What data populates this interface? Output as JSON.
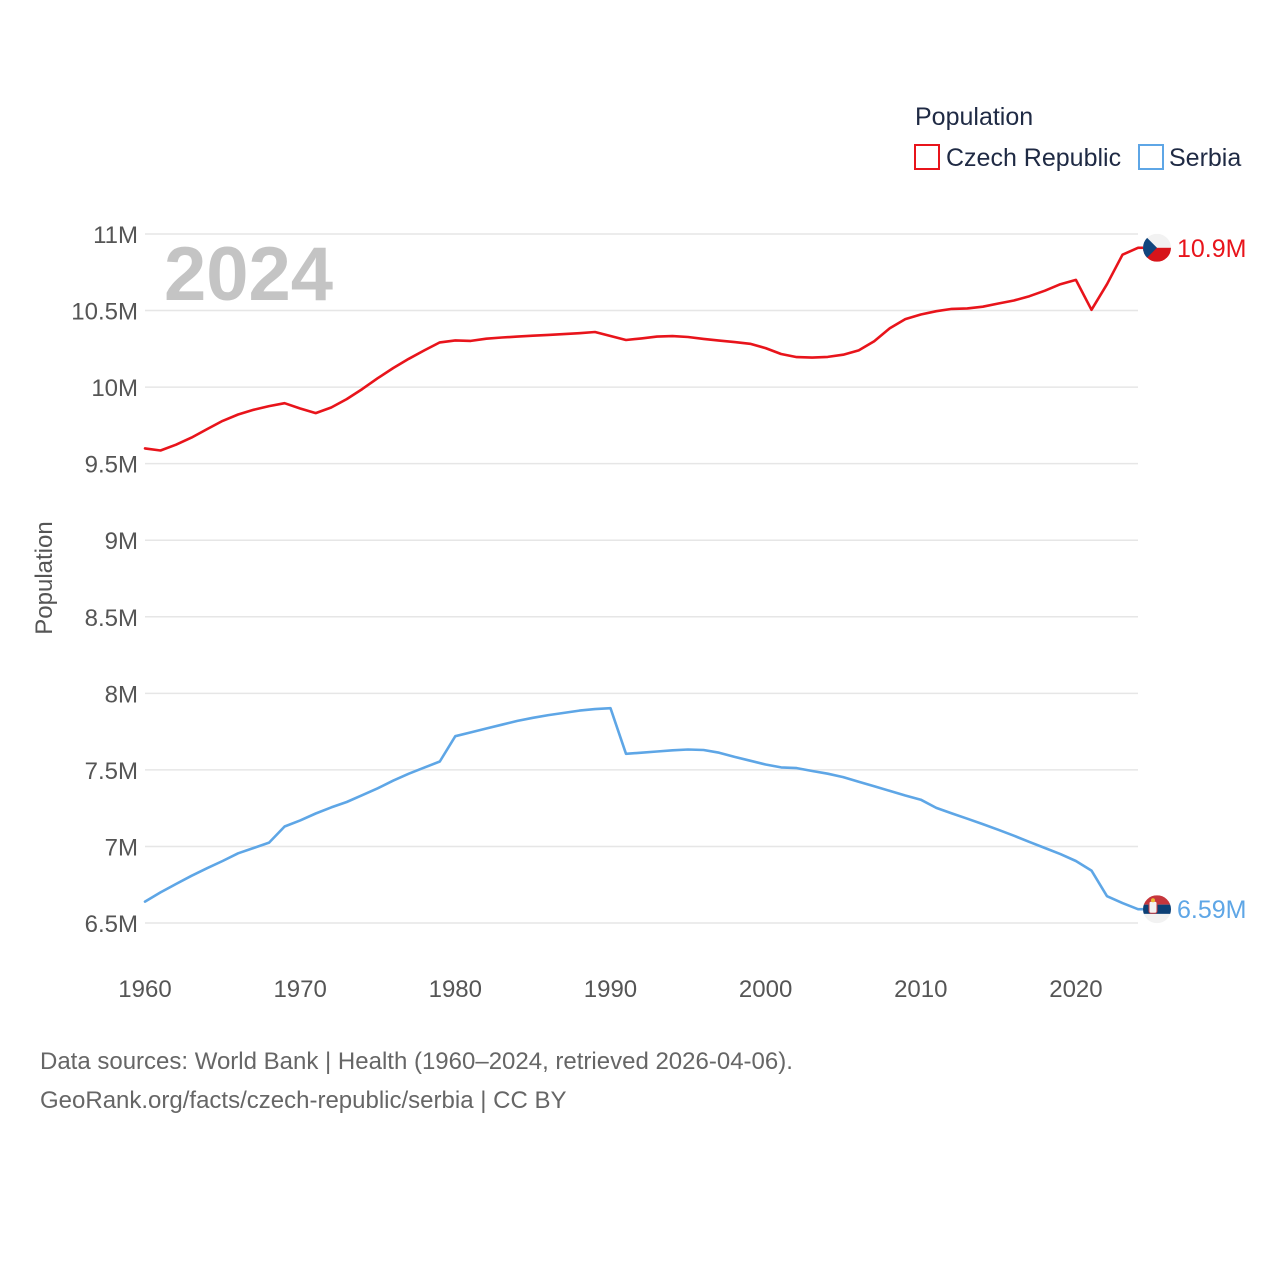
{
  "chart_data": {
    "type": "line",
    "title": "Population",
    "ylabel": "Population",
    "xlabel": "",
    "year_label": "2024",
    "xlim": [
      1960,
      2024
    ],
    "ylim": [
      6250000,
      11050000
    ],
    "x_ticks": [
      1960,
      1970,
      1980,
      1990,
      2000,
      2010,
      2020
    ],
    "y_ticks": [
      {
        "value": 6500000,
        "label": "6.5M"
      },
      {
        "value": 7000000,
        "label": "7M"
      },
      {
        "value": 7500000,
        "label": "7.5M"
      },
      {
        "value": 8000000,
        "label": "8M"
      },
      {
        "value": 8500000,
        "label": "8.5M"
      },
      {
        "value": 9000000,
        "label": "9M"
      },
      {
        "value": 9500000,
        "label": "9.5M"
      },
      {
        "value": 10000000,
        "label": "10M"
      },
      {
        "value": 10500000,
        "label": "10.5M"
      },
      {
        "value": 11000000,
        "label": "11M"
      }
    ],
    "grid": true,
    "legend_position": "top-right",
    "x": [
      1960,
      1961,
      1962,
      1963,
      1964,
      1965,
      1966,
      1967,
      1968,
      1969,
      1970,
      1971,
      1972,
      1973,
      1974,
      1975,
      1976,
      1977,
      1978,
      1979,
      1980,
      1981,
      1982,
      1983,
      1984,
      1985,
      1986,
      1987,
      1988,
      1989,
      1990,
      1991,
      1992,
      1993,
      1994,
      1995,
      1996,
      1997,
      1998,
      1999,
      2000,
      2001,
      2002,
      2003,
      2004,
      2005,
      2006,
      2007,
      2008,
      2009,
      2010,
      2011,
      2012,
      2013,
      2014,
      2015,
      2016,
      2017,
      2018,
      2019,
      2020,
      2021,
      2022,
      2023,
      2024
    ],
    "series": [
      {
        "name": "Czech Republic",
        "color": "#e8141b",
        "end_label": "10.9M",
        "flag": "czech-flag",
        "values": [
          9600000,
          9586000,
          9624000,
          9670000,
          9726000,
          9779000,
          9821000,
          9852000,
          9876000,
          9895000,
          9860000,
          9830000,
          9867000,
          9922000,
          9987000,
          10058000,
          10125000,
          10185000,
          10240000,
          10292000,
          10305000,
          10302000,
          10316000,
          10324000,
          10330000,
          10336000,
          10341000,
          10346000,
          10352000,
          10360000,
          10334000,
          10308000,
          10318000,
          10330000,
          10333000,
          10327000,
          10315000,
          10304000,
          10294000,
          10283000,
          10255000,
          10216000,
          10196000,
          10193000,
          10197000,
          10212000,
          10240000,
          10299000,
          10385000,
          10444000,
          10474000,
          10496000,
          10511000,
          10514000,
          10525000,
          10546000,
          10566000,
          10594000,
          10630000,
          10672000,
          10700000,
          10505000,
          10672000,
          10865000,
          10910000
        ]
      },
      {
        "name": "Serbia",
        "color": "#5ea6e6",
        "end_label": "6.59M",
        "flag": "serbia-flag",
        "values": [
          6640000,
          6700000,
          6755000,
          6808000,
          6858000,
          6905000,
          6955000,
          6990000,
          7025000,
          7130000,
          7170000,
          7215000,
          7255000,
          7290000,
          7335000,
          7380000,
          7430000,
          7475000,
          7515000,
          7555000,
          7720000,
          7745000,
          7770000,
          7795000,
          7820000,
          7840000,
          7858000,
          7872000,
          7887000,
          7897000,
          7903000,
          7605000,
          7612000,
          7620000,
          7628000,
          7633000,
          7630000,
          7612000,
          7585000,
          7560000,
          7535000,
          7516000,
          7512000,
          7493000,
          7475000,
          7453000,
          7423000,
          7393000,
          7363000,
          7333000,
          7305000,
          7252000,
          7216000,
          7181000,
          7146000,
          7109000,
          7070000,
          7030000,
          6990000,
          6950000,
          6905000,
          6842000,
          6675000,
          6630000,
          6590000
        ]
      }
    ]
  },
  "sources": {
    "line1": "Data sources: World Bank | Health (1960–2024, retrieved 2026-04-06).",
    "line2": "GeoRank.org/facts/czech-republic/serbia | CC BY"
  }
}
